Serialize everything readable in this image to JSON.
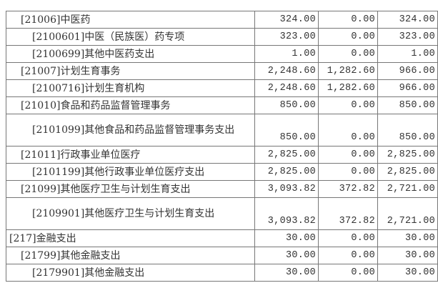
{
  "rows": [
    {
      "name": "[21006]中医药",
      "level": 2,
      "c1": "324.00",
      "c2": "0.00",
      "c3": "324.00"
    },
    {
      "name": "[2100601]中医（民族医）药专项",
      "level": 3,
      "c1": "323.00",
      "c2": "0.00",
      "c3": "323.00"
    },
    {
      "name": "[2100699]其他中医药支出",
      "level": 3,
      "c1": "1.00",
      "c2": "0.00",
      "c3": "1.00"
    },
    {
      "name": "[21007]计划生育事务",
      "level": 2,
      "c1": "2,248.60",
      "c2": "1,282.60",
      "c3": "966.00"
    },
    {
      "name": "[2100716]计划生育机构",
      "level": 3,
      "c1": "2,248.60",
      "c2": "1,282.60",
      "c3": "966.00"
    },
    {
      "name": "[21010]食品和药品监督管理事务",
      "level": 2,
      "c1": "850.00",
      "c2": "0.00",
      "c3": "850.00"
    },
    {
      "name": "[2101099]其他食品和药品监督管理事务支出",
      "level": 3,
      "tall": true,
      "c1": "850.00",
      "c2": "0.00",
      "c3": "850.00"
    },
    {
      "name": "[21011]行政事业单位医疗",
      "level": 2,
      "c1": "2,825.00",
      "c2": "0.00",
      "c3": "2,825.00"
    },
    {
      "name": "[2101199]其他行政事业单位医疗支出",
      "level": 3,
      "c1": "2,825.00",
      "c2": "0.00",
      "c3": "2,825.00"
    },
    {
      "name": "[21099]其他医疗卫生与计划生育支出",
      "level": 2,
      "c1": "3,093.82",
      "c2": "372.82",
      "c3": "2,721.00"
    },
    {
      "name": "[2109901]其他医疗卫生与计划生育支出",
      "level": 3,
      "tall": true,
      "c1": "3,093.82",
      "c2": "372.82",
      "c3": "2,721.00"
    },
    {
      "name": "[217]金融支出",
      "level": 1,
      "c1": "30.00",
      "c2": "0.00",
      "c3": "30.00"
    },
    {
      "name": "[21799]其他金融支出",
      "level": 2,
      "c1": "30.00",
      "c2": "0.00",
      "c3": "30.00"
    },
    {
      "name": "[2179901]其他金融支出",
      "level": 3,
      "c1": "30.00",
      "c2": "0.00",
      "c3": "30.00"
    }
  ]
}
